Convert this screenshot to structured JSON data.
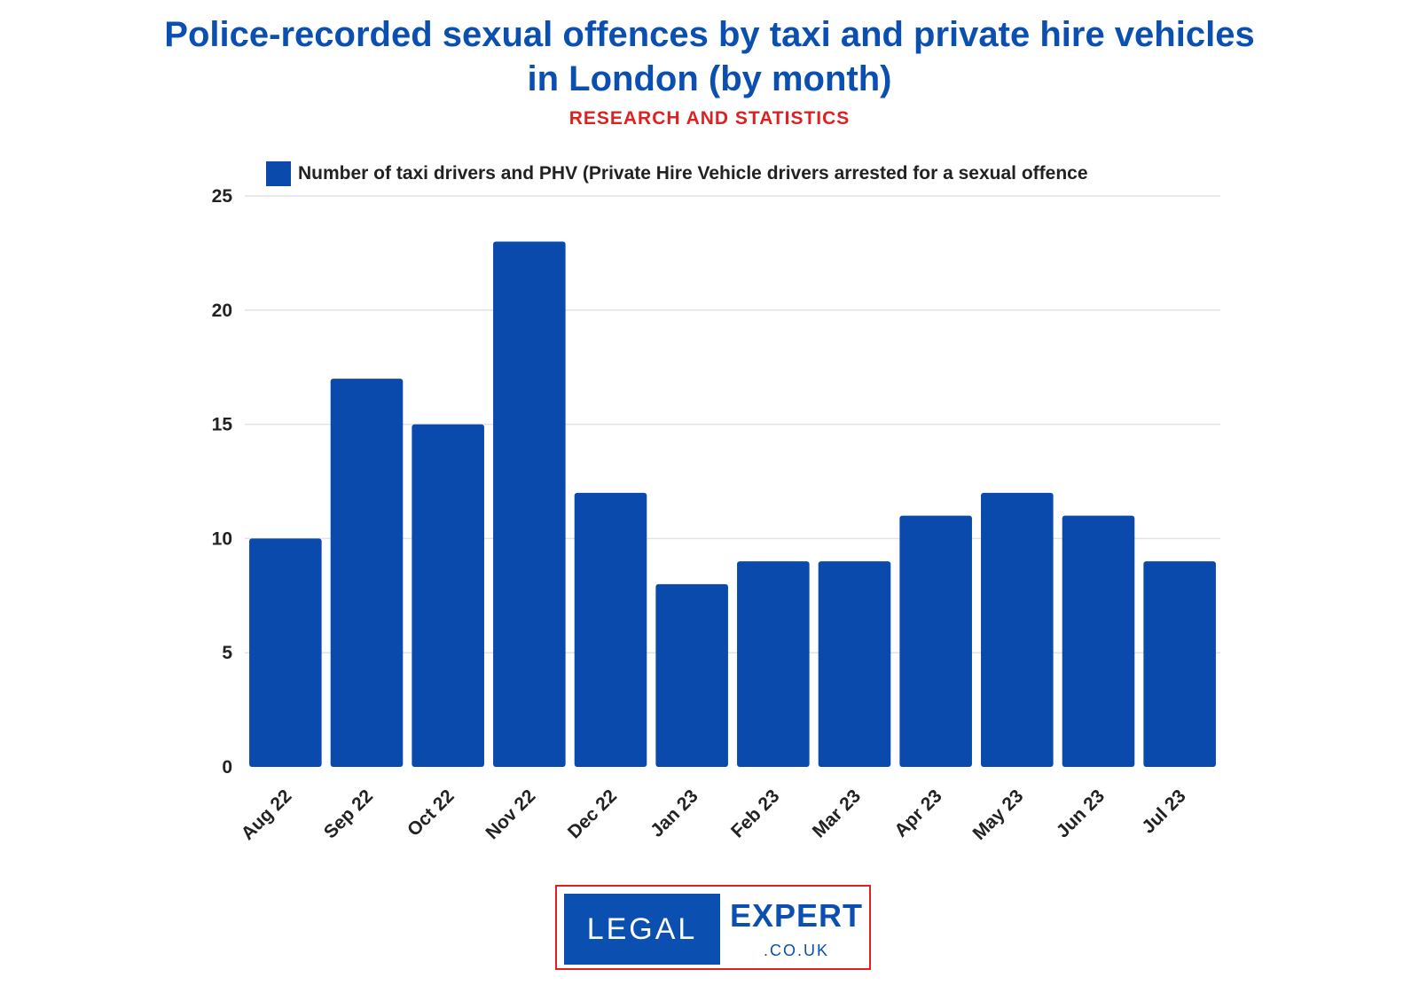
{
  "header": {
    "title_line1": "Police-recorded sexual offences by taxi and private hire vehicles",
    "title_line2": "in London (by month)",
    "subtitle": "RESEARCH AND STATISTICS"
  },
  "colors": {
    "bar": "#0a4aad",
    "title": "#0b4fb0",
    "subtitle": "#e02020",
    "grid": "#e3e3e3"
  },
  "chart_data": {
    "type": "bar",
    "title": "Police-recorded sexual offences by taxi and private hire vehicles in London (by month)",
    "subtitle": "RESEARCH AND STATISTICS",
    "xlabel": "",
    "ylabel": "",
    "ylim": [
      0,
      25
    ],
    "yticks": [
      0,
      5,
      10,
      15,
      20,
      25
    ],
    "grid": true,
    "legend": "top",
    "categories": [
      "Aug 22",
      "Sep 22",
      "Oct 22",
      "Nov 22",
      "Dec 22",
      "Jan 23",
      "Feb 23",
      "Mar 23",
      "Apr 23",
      "May 23",
      "Jun 23",
      "Jul 23"
    ],
    "series": [
      {
        "name": "Number of taxi drivers and PHV (Private Hire Vehicle drivers arrested for a sexual offence",
        "values": [
          10,
          17,
          15,
          23,
          12,
          8,
          9,
          9,
          11,
          12,
          11,
          9
        ]
      }
    ]
  },
  "logo": {
    "left_text": "LEGAL",
    "right_text": "EXPERT",
    "domain_text": ".CO.UK"
  }
}
